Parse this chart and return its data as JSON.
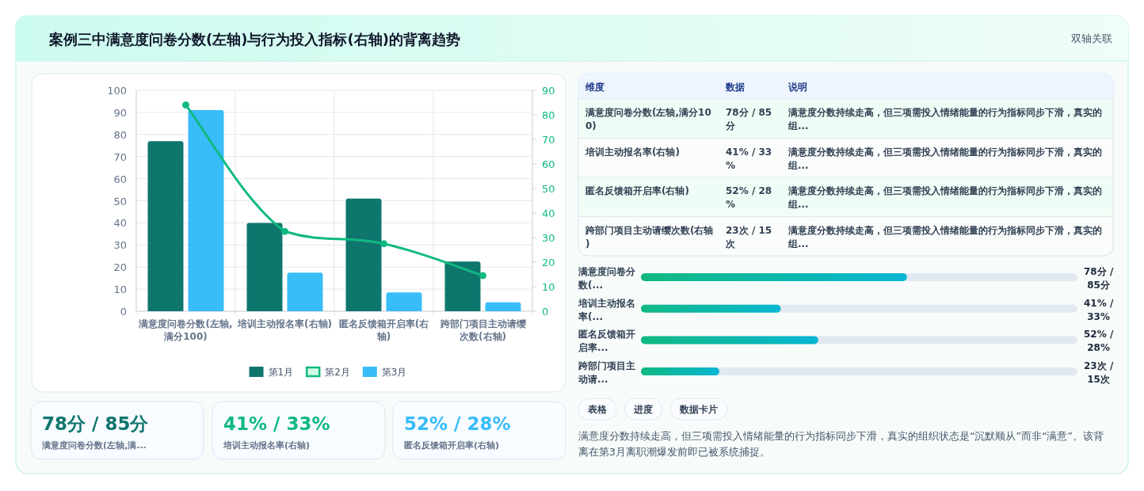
{
  "chart_data": [
    {
      "type": "other",
      "annotations": [
        "案例三中满意度问卷分数(左轴)与行为投入指标(右轴)的背离趋势",
        "双轴关联"
      ]
    },
    {
      "type": "bar",
      "categories": [
        "满意度问卷分数(左轴,满分100)",
        "培训主动报名率(右轴)",
        "匿名反馈箱开启率(右轴)",
        "跨部门项目主动请缨次数(右轴)"
      ],
      "series": [
        {
          "name": "第1月",
          "color": "#0f766e",
          "values": [
            77,
            40,
            51,
            22.5
          ]
        },
        {
          "name": "第2月",
          "type": "line",
          "axis": "y2",
          "color": "#10b981",
          "values": [
            84,
            32.5,
            27.5,
            14.5
          ]
        },
        {
          "name": "第3月",
          "color": "#38bdf8",
          "values": [
            91,
            17.5,
            8.5,
            4
          ]
        }
      ],
      "ylim": [
        0,
        100
      ],
      "yticks": [
        0,
        10,
        20,
        30,
        40,
        50,
        60,
        70,
        80,
        90,
        100
      ],
      "y2lim": [
        0,
        90
      ],
      "y2ticks": [
        0,
        10,
        20,
        30,
        40,
        50,
        60,
        70,
        80,
        90
      ],
      "grid": true,
      "legend": "bottom",
      "marker": "circle",
      "line_style": "solid"
    },
    {
      "type": "other",
      "annotations": [
        "78分 / 85分",
        "满意度问卷分数(左轴,满...",
        "41% / 33%",
        "培训主动报名率(右轴)",
        "52% / 28%",
        "匿名反馈箱开启率(右轴)"
      ]
    },
    {
      "type": "other",
      "annotations": [
        "维度",
        "数据",
        "说明",
        "满意度问卷分数(左轴,满分100)",
        "78分 / 85分",
        "满意度分数持续走高，但三项需投入情绪能量的行为指标同步下滑，真实的组...",
        "培训主动报名率(右轴)",
        "41% / 33%",
        "满意度分数持续走高，但三项需投入情绪能量的行为指标同步下滑，真实的组...",
        "匿名反馈箱开启率(右轴)",
        "52% / 28%",
        "满意度分数持续走高，但三项需投入情绪能量的行为指标同步下滑，真实的组...",
        "跨部门项目主动请缨次数(右轴)",
        "23次 / 15次",
        "满意度分数持续走高，但三项需投入情绪能量的行为指标同步下滑，真实的组..."
      ]
    },
    {
      "type": "bar",
      "orientation": "horizontal",
      "categories": [
        "满意度问卷分数(...",
        "培训主动报名率(...",
        "匿名反馈箱开启率...",
        "跨部门项目主动请..."
      ],
      "xlim": [
        0,
        128
      ],
      "series": [
        {
          "color": "#10b981",
          "values": [
            78,
            41,
            52,
            23
          ],
          "value_labels": [
            "78分 / 85分",
            "41% / 33%",
            "52% / 28%",
            "23次 / 15次"
          ]
        }
      ]
    },
    {
      "type": "other",
      "annotations": [
        "表格",
        "进度",
        "数据卡片",
        "满意度分数持续走高，但三项需投入情绪能量的行为指标同步下滑，真实的组织状态是“沉默顺从”而非“满意”。该背离在第3月离职潮爆发前即已被系统捕捉。"
      ]
    }
  ]
}
